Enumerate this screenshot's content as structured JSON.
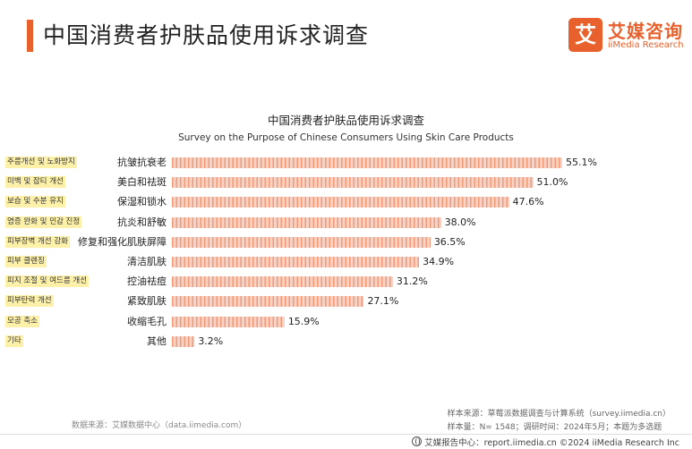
{
  "header": {
    "title": "中国消费者护肤品使用诉求调查"
  },
  "logo": {
    "mark": "艾",
    "name_cn": "艾媒咨询",
    "name_en": "iiMedia Research"
  },
  "chart_data": {
    "type": "bar",
    "orientation": "horizontal",
    "title": "中国消费者护肤品使用诉求调查",
    "subtitle": "Survey on the Purpose of Chinese Consumers Using Skin Care Products",
    "categories": [
      "抗皱抗衰老",
      "美白和祛斑",
      "保湿和锁水",
      "抗炎和舒敏",
      "修复和强化肌肤屏障",
      "清洁肌肤",
      "控油祛痘",
      "紧致肌肤",
      "收缩毛孔",
      "其他"
    ],
    "korean_labels": [
      "주름개선 및 노화방지",
      "미백 및 잡티 개선",
      "보습 및 수분 유지",
      "염증 완화 및 민감 진정",
      "피부장벽 개선 강화",
      "피부 클렌징",
      "피지 조절 및 여드름 개선",
      "피부탄력 개선",
      "모공 축소",
      "기타"
    ],
    "values": [
      55.1,
      51.0,
      47.6,
      38.0,
      36.5,
      34.9,
      31.2,
      27.1,
      15.9,
      3.2
    ],
    "value_labels": [
      "55.1%",
      "51.0%",
      "47.6%",
      "38.0%",
      "36.5%",
      "34.9%",
      "31.2%",
      "27.1%",
      "15.9%",
      "3.2%"
    ],
    "unit": "%",
    "xlim": [
      0,
      55.1
    ],
    "bar_color": "#f09a78",
    "label_highlight_color": "#fdf0a8"
  },
  "sources": {
    "data_source": "数据来源：艾媒数据中心（data.iimedia.com）",
    "sample_source": "样本来源：草莓派数据调查与计算系统（survey.iimedia.cn）",
    "sample_info": "样本量：N= 1548；调研时间：2024年5月；本题为多选题"
  },
  "footer": {
    "text": "艾媒报告中心：report.iimedia.cn    ©2024  iiMedia Research  Inc"
  },
  "accent_color": "#e8612c"
}
